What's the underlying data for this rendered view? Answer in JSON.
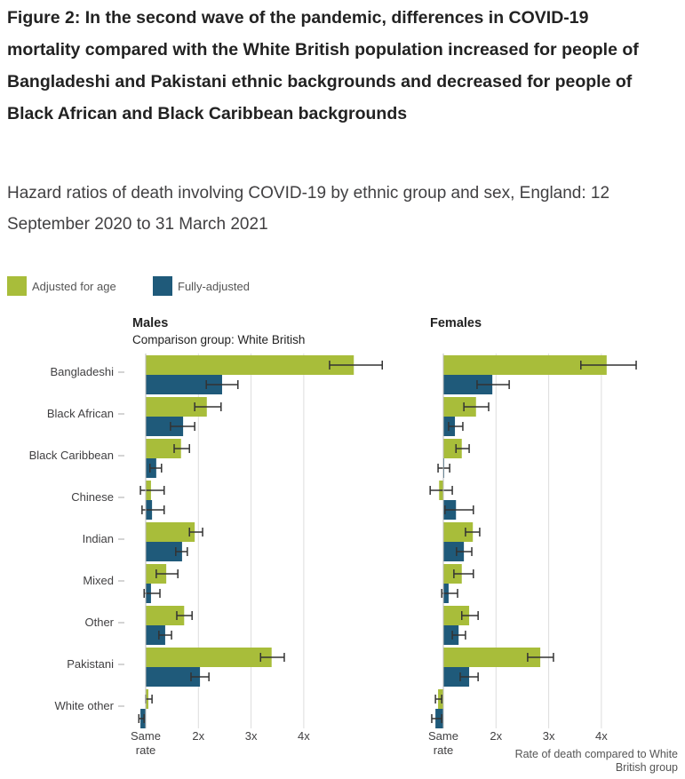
{
  "chart_data": {
    "type": "bar",
    "orientation": "horizontal",
    "title": "Figure 2: In the second wave of the pandemic, differences in COVID-19 mortality compared with the White British population increased for people of Bangladeshi and Pakistani ethnic backgrounds and decreased for people of Black African and Black Caribbean backgrounds",
    "subtitle": "Hazard ratios of death involving COVID-19 by ethnic group and sex, England: 12 September 2020 to 31 March 2021",
    "categories": [
      "Bangladeshi",
      "Black African",
      "Black Caribbean",
      "Chinese",
      "Indian",
      "Mixed",
      "Other",
      "Pakistani",
      "White other"
    ],
    "legend": [
      "Adjusted for age",
      "Fully-adjusted"
    ],
    "legend_placement": "top-left",
    "colors": {
      "Adjusted for age": "#a8bd3a",
      "Fully-adjusted": "#1f5a7a"
    },
    "xlabel": "Rate of death compared to White British group",
    "xticks": [
      {
        "v": 1,
        "l": "Same rate"
      },
      {
        "v": 2,
        "l": "2x"
      },
      {
        "v": 3,
        "l": "3x"
      },
      {
        "v": 4,
        "l": "4x"
      }
    ],
    "baseline": 1,
    "xlim": [
      0.7,
      5.6
    ],
    "grid": true,
    "panels": [
      {
        "title": "Males",
        "note": "Comparison group: White British",
        "series": [
          {
            "name": "Adjusted for age",
            "values": [
              4.95,
              2.16,
              1.67,
              1.1,
              1.93,
              1.39,
              1.73,
              3.39,
              1.05
            ],
            "lower": [
              4.49,
              1.93,
              1.54,
              0.9,
              1.83,
              1.2,
              1.59,
              3.18,
              1.0
            ],
            "upper": [
              5.49,
              2.43,
              1.83,
              1.35,
              2.08,
              1.61,
              1.88,
              3.63,
              1.12
            ]
          },
          {
            "name": "Fully-adjusted",
            "values": [
              2.45,
              1.71,
              1.2,
              1.12,
              1.69,
              1.1,
              1.37,
              2.03,
              0.9
            ],
            "lower": [
              2.15,
              1.47,
              1.08,
              0.93,
              1.57,
              0.97,
              1.25,
              1.86,
              0.87
            ],
            "upper": [
              2.75,
              1.93,
              1.3,
              1.35,
              1.79,
              1.27,
              1.49,
              2.2,
              0.97
            ]
          }
        ]
      },
      {
        "title": "Females",
        "note": "",
        "series": [
          {
            "name": "Adjusted for age",
            "values": [
              4.1,
              1.62,
              1.35,
              0.92,
              1.56,
              1.35,
              1.49,
              2.84,
              0.9
            ],
            "lower": [
              3.61,
              1.39,
              1.24,
              0.75,
              1.42,
              1.2,
              1.35,
              2.6,
              0.85
            ],
            "upper": [
              4.66,
              1.86,
              1.49,
              1.17,
              1.69,
              1.57,
              1.66,
              3.09,
              0.97
            ]
          },
          {
            "name": "Fully-adjusted",
            "values": [
              1.93,
              1.22,
              1.0,
              1.24,
              1.39,
              1.1,
              1.29,
              1.49,
              0.85
            ],
            "lower": [
              1.64,
              1.1,
              0.9,
              1.03,
              1.25,
              0.97,
              1.17,
              1.32,
              0.78
            ],
            "upper": [
              2.25,
              1.37,
              1.12,
              1.57,
              1.54,
              1.27,
              1.42,
              1.66,
              0.97
            ]
          }
        ]
      }
    ]
  }
}
